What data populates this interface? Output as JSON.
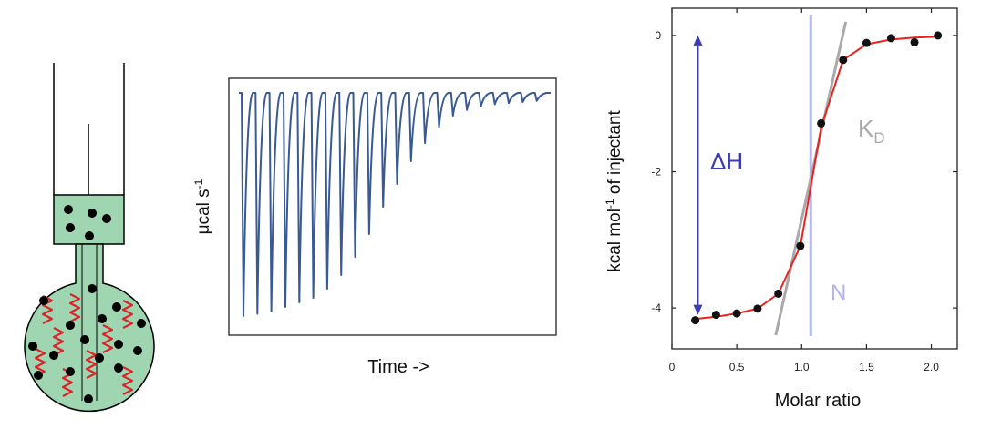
{
  "panels": {
    "thermogram": {
      "ylabel": "μcal s",
      "ylabel_superscript": "-1",
      "xlabel": "Time ->",
      "line_color": "#3a5a94",
      "peak_depths": [
        0.98,
        0.97,
        0.96,
        0.94,
        0.92,
        0.9,
        0.86,
        0.8,
        0.72,
        0.62,
        0.5,
        0.4,
        0.3,
        0.22,
        0.15,
        0.1,
        0.075,
        0.06,
        0.05,
        0.045,
        0.04,
        0.035
      ]
    },
    "binding_isotherm": {
      "ylabel_part1": "kcal mol",
      "ylabel_superscript": "-1",
      "ylabel_part2": " of injectant",
      "xlabel": "Molar ratio",
      "x_ticks": [
        "0",
        "0.5",
        "1.0",
        "1.5",
        "2.0"
      ],
      "y_ticks": [
        "0",
        "-2",
        "-4"
      ],
      "annotations": {
        "delta_h": "ΔH",
        "kd_main": "K",
        "kd_sub": "D",
        "n": "N"
      },
      "colors": {
        "fit": "#e8231f",
        "points": "#111111",
        "delta_h": "#3c3cb4",
        "kd": "#a9a9a9",
        "n_line": "#b8b9ec",
        "n_text": "#b0b4ea"
      }
    }
  },
  "chart_data": {
    "type": "scatter",
    "xlabel": "Molar ratio",
    "ylabel": "kcal mol-1 of injectant",
    "xlim": [
      0,
      2.2
    ],
    "ylim": [
      -4.6,
      0.4
    ],
    "series": [
      {
        "x": [
          0.18,
          0.34,
          0.5,
          0.66,
          0.82,
          0.99,
          1.15,
          1.32,
          1.5,
          1.69,
          1.87,
          2.05
        ],
        "y": [
          -4.18,
          -4.1,
          -4.08,
          -4.01,
          -3.79,
          -3.09,
          -1.29,
          -0.36,
          -0.11,
          -0.04,
          -0.1,
          0.0
        ]
      }
    ],
    "fit_line": {
      "x": [
        0.18,
        0.34,
        0.5,
        0.66,
        0.82,
        0.99,
        1.15,
        1.32,
        1.5,
        1.69,
        1.87,
        2.05
      ],
      "y": [
        -4.16,
        -4.13,
        -4.08,
        -4.01,
        -3.79,
        -3.09,
        -1.35,
        -0.36,
        -0.13,
        -0.06,
        -0.03,
        -0.02
      ]
    },
    "n_value": 1.07,
    "tangent": {
      "x": [
        0.8,
        1.34
      ],
      "y": [
        -4.4,
        0.2
      ]
    },
    "delta_h_arrow": {
      "x": 0.2,
      "y": [
        -4.1,
        0.0
      ]
    }
  },
  "cell_diagram": {
    "colors": {
      "fill": "#9fd6b1",
      "molecule": "#d9252a",
      "ligand": "#000000"
    }
  }
}
